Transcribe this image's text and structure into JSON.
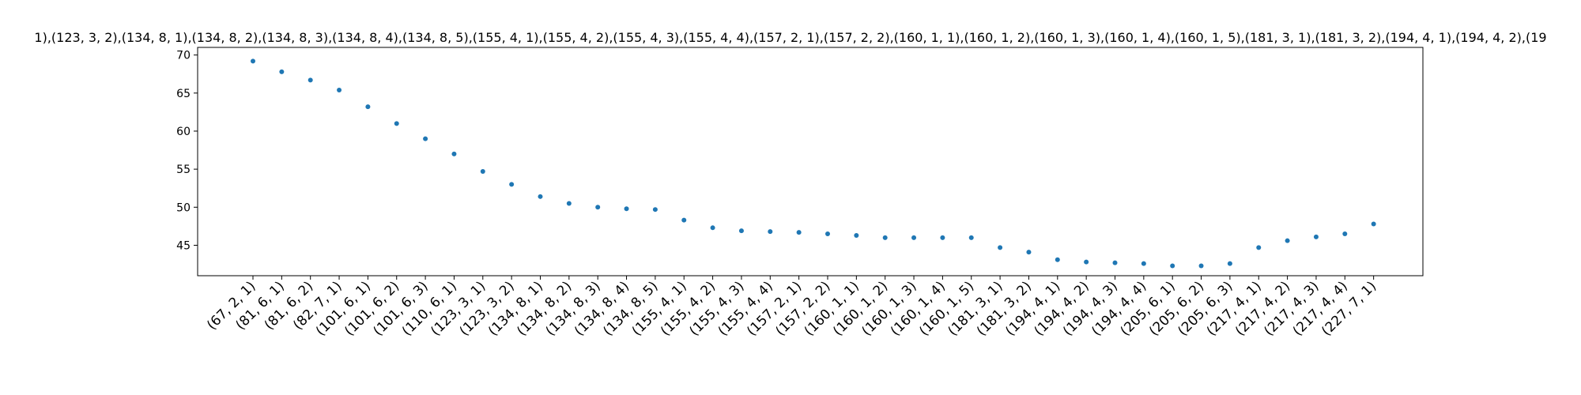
{
  "chart_data": {
    "type": "scatter",
    "title": "1),(123, 3, 2),(134, 8, 1),(134, 8, 2),(134, 8, 3),(134, 8, 4),(134, 8, 5),(155, 4, 1),(155, 4, 2),(155, 4, 3),(155, 4, 4),(157, 2, 1),(157, 2, 2),(160, 1, 1),(160, 1, 2),(160, 1, 3),(160, 1, 4),(160, 1, 5),(181, 3, 1),(181, 3, 2),(194, 4, 1),(194, 4, 2),(19",
    "xlabel": "",
    "ylabel": "",
    "ylim": [
      41,
      71
    ],
    "yticks": [
      45,
      50,
      55,
      60,
      65,
      70
    ],
    "grid": false,
    "marker_color": "#1f77b4",
    "categories": [
      "(67, 2, 1)",
      "(81, 6, 1)",
      "(81, 6, 2)",
      "(82, 7, 1)",
      "(101, 6, 1)",
      "(101, 6, 2)",
      "(101, 6, 3)",
      "(110, 6, 1)",
      "(123, 3, 1)",
      "(123, 3, 2)",
      "(134, 8, 1)",
      "(134, 8, 2)",
      "(134, 8, 3)",
      "(134, 8, 4)",
      "(134, 8, 5)",
      "(155, 4, 1)",
      "(155, 4, 2)",
      "(155, 4, 3)",
      "(155, 4, 4)",
      "(157, 2, 1)",
      "(157, 2, 2)",
      "(160, 1, 1)",
      "(160, 1, 2)",
      "(160, 1, 3)",
      "(160, 1, 4)",
      "(160, 1, 5)",
      "(181, 3, 1)",
      "(181, 3, 2)",
      "(194, 4, 1)",
      "(194, 4, 2)",
      "(194, 4, 3)",
      "(194, 4, 4)",
      "(205, 6, 1)",
      "(205, 6, 2)",
      "(205, 6, 3)",
      "(217, 4, 1)",
      "(217, 4, 2)",
      "(217, 4, 3)",
      "(217, 4, 4)",
      "(227, 7, 1)"
    ],
    "values": [
      69.2,
      67.8,
      66.7,
      65.4,
      63.2,
      61.0,
      59.0,
      57.0,
      54.7,
      53.0,
      51.4,
      50.5,
      50.0,
      49.8,
      49.7,
      48.3,
      47.3,
      46.9,
      46.8,
      46.7,
      46.5,
      46.3,
      46.0,
      46.0,
      46.0,
      46.0,
      44.7,
      44.1,
      43.1,
      42.8,
      42.7,
      42.6,
      42.3,
      42.3,
      42.6,
      44.7,
      45.6,
      46.1,
      46.5,
      47.8
    ]
  }
}
